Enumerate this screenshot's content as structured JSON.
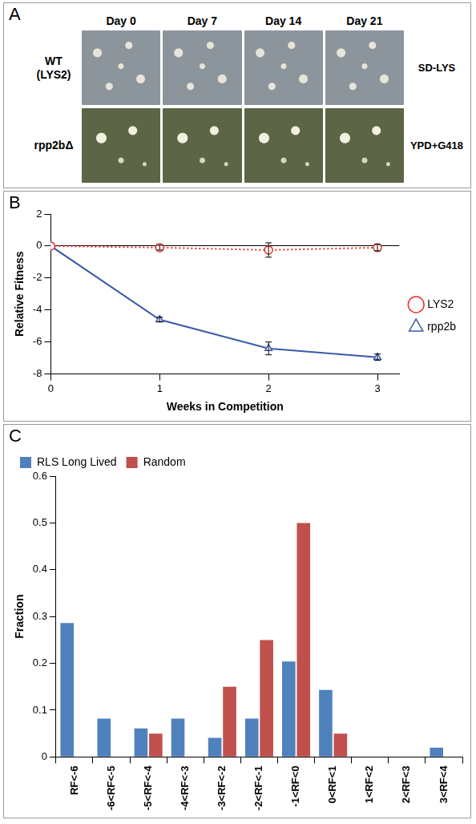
{
  "panel_a": {
    "label": "A",
    "columns": [
      "Day 0",
      "Day 7",
      "Day 14",
      "Day 21"
    ],
    "rows": [
      {
        "label": "WT (LYS2)",
        "medium": "SD-LYS"
      },
      {
        "label": "rpp2bΔ",
        "medium": "YPD+G418"
      }
    ]
  },
  "chart_data": [
    {
      "panel": "B",
      "type": "line",
      "x_label": "Weeks in Competition",
      "y_label": "Relative Fitness",
      "x": [
        0,
        1,
        2,
        3
      ],
      "xlim": [
        0,
        3.2
      ],
      "xticks": [
        0,
        1,
        2,
        3
      ],
      "ylim": [
        -8,
        2
      ],
      "yticks": [
        -8,
        -6,
        -4,
        -2,
        0,
        2
      ],
      "grid": false,
      "legend": "right",
      "series": [
        {
          "name": "LYS2",
          "color": "#e8302a",
          "marker": "circle",
          "line_style": "dotted",
          "values": [
            0,
            -0.1,
            -0.25,
            -0.1
          ],
          "errors": [
            0,
            0.15,
            0.45,
            0.2
          ]
        },
        {
          "name": "rpp2b",
          "color": "#3a5ba8",
          "marker": "triangle",
          "line_style": "solid",
          "values": [
            0,
            -4.6,
            -6.4,
            -6.95
          ],
          "errors": [
            0,
            0.15,
            0.4,
            0.2
          ]
        }
      ]
    },
    {
      "panel": "C",
      "type": "bar",
      "y_label": "Fraction",
      "categories": [
        "RF<-6",
        "-6<RF<-5",
        "-5<RF<-4",
        "-4<RF<-3",
        "-3<RF<-2",
        "-2<RF<-1",
        "-1<RF<0",
        "0<RF<1",
        "1<RF<2",
        "2<RF<3",
        "3<RF<4"
      ],
      "ylim": [
        0,
        0.6
      ],
      "yticks": [
        0,
        0.1,
        0.2,
        0.3,
        0.4,
        0.5,
        0.6
      ],
      "grid": false,
      "legend": "top",
      "series": [
        {
          "name": "RLS Long Lived",
          "color": "#4f81bd",
          "values": [
            0.286,
            0.082,
            0.061,
            0.082,
            0.041,
            0.082,
            0.204,
            0.143,
            0,
            0,
            0.02
          ]
        },
        {
          "name": "Random",
          "color": "#c0504d",
          "values": [
            0,
            0,
            0.05,
            0,
            0.15,
            0.25,
            0.5,
            0.05,
            0,
            0,
            0
          ]
        }
      ]
    }
  ]
}
